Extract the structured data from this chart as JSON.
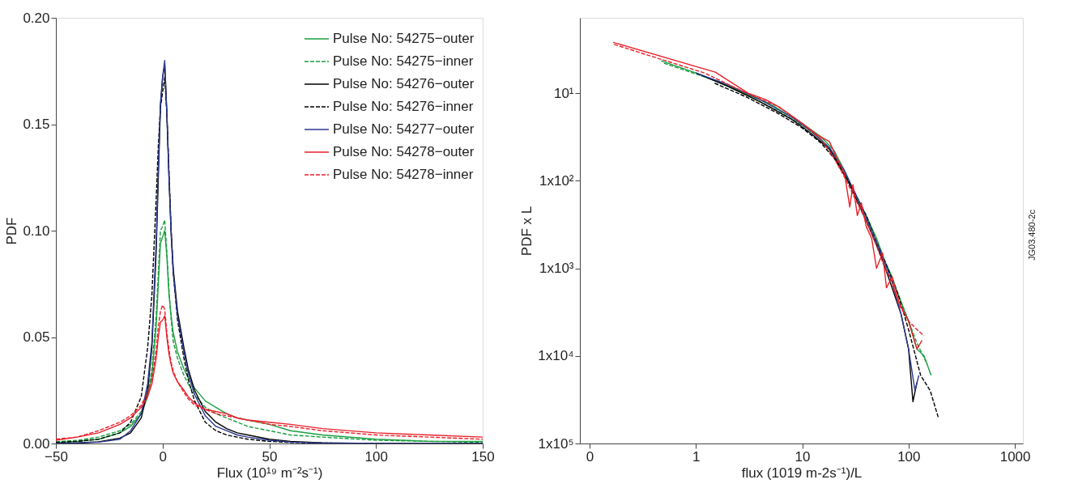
{
  "chart_data": [
    {
      "type": "line",
      "xlabel": "Flux (10¹⁹ m⁻²s⁻¹)",
      "ylabel": "PDF",
      "xlim": [
        -50,
        150
      ],
      "ylim": [
        0,
        0.2
      ],
      "xticks": [
        -50,
        0,
        50,
        100,
        150
      ],
      "yticks": [
        {
          "value": 0,
          "label": "0.00"
        },
        {
          "value": 0.05,
          "label": "0.05"
        },
        {
          "value": 0.1,
          "label": "0.10"
        },
        {
          "value": 0.15,
          "label": "0.15"
        },
        {
          "value": 0.2,
          "label": "0.20"
        }
      ],
      "grid": false,
      "legend": "top right",
      "x": [
        -50,
        -40,
        -30,
        -20,
        -15,
        -10,
        -7,
        -5,
        -3,
        -2,
        -1,
        0,
        1,
        2,
        3,
        4,
        5,
        7,
        10,
        12,
        15,
        20,
        25,
        30,
        35,
        40,
        50,
        60,
        75,
        100,
        125,
        150
      ],
      "series": [
        {
          "name": "Pulse No: 54275−outer",
          "color": "#1a9e3f",
          "line_style": "solid",
          "values": [
            0.0005,
            0.001,
            0.002,
            0.005,
            0.008,
            0.014,
            0.022,
            0.032,
            0.055,
            0.075,
            0.094,
            0.097,
            0.1,
            0.088,
            0.07,
            0.06,
            0.052,
            0.043,
            0.035,
            0.031,
            0.026,
            0.02,
            0.017,
            0.014,
            0.012,
            0.011,
            0.009,
            0.006,
            0.004,
            0.002,
            0.001,
            0.001
          ]
        },
        {
          "name": "Pulse No: 54275−inner",
          "color": "#1a9e3f",
          "line_style": "dashed",
          "values": [
            0.0008,
            0.0015,
            0.003,
            0.006,
            0.009,
            0.015,
            0.024,
            0.035,
            0.06,
            0.08,
            0.1,
            0.102,
            0.105,
            0.09,
            0.072,
            0.058,
            0.048,
            0.04,
            0.032,
            0.028,
            0.023,
            0.017,
            0.014,
            0.012,
            0.01,
            0.008,
            0.006,
            0.004,
            0.003,
            0.0015,
            0.001,
            0.0005
          ]
        },
        {
          "name": "Pulse No: 54276−outer",
          "color": "#000000",
          "line_style": "solid",
          "values": [
            0,
            0.0003,
            0.0008,
            0.0025,
            0.005,
            0.012,
            0.025,
            0.045,
            0.09,
            0.125,
            0.158,
            0.172,
            0.178,
            0.155,
            0.125,
            0.1,
            0.082,
            0.062,
            0.045,
            0.035,
            0.025,
            0.015,
            0.01,
            0.007,
            0.005,
            0.004,
            0.002,
            0.001,
            0.0003,
            0,
            0,
            0
          ]
        },
        {
          "name": "Pulse No: 54276−inner",
          "color": "#000000",
          "line_style": "dashed",
          "values": [
            0.0005,
            0.001,
            0.002,
            0.005,
            0.01,
            0.022,
            0.045,
            0.07,
            0.115,
            0.14,
            0.158,
            0.165,
            0.172,
            0.155,
            0.128,
            0.1,
            0.08,
            0.058,
            0.04,
            0.03,
            0.02,
            0.01,
            0.006,
            0.004,
            0.003,
            0.002,
            0.001,
            0.0005,
            0.0002,
            0,
            0,
            0
          ]
        },
        {
          "name": "Pulse No: 54277−outer",
          "color": "#2b3990",
          "line_style": "solid",
          "values": [
            0,
            0.0002,
            0.0006,
            0.002,
            0.006,
            0.014,
            0.028,
            0.048,
            0.095,
            0.13,
            0.16,
            0.172,
            0.18,
            0.155,
            0.125,
            0.098,
            0.08,
            0.06,
            0.043,
            0.033,
            0.023,
            0.013,
            0.008,
            0.006,
            0.004,
            0.003,
            0.0015,
            0.0006,
            0.0002,
            0,
            0,
            0
          ]
        },
        {
          "name": "Pulse No: 54278−outer",
          "color": "#e8202a",
          "line_style": "solid",
          "values": [
            0.0015,
            0.003,
            0.005,
            0.009,
            0.012,
            0.017,
            0.022,
            0.028,
            0.04,
            0.05,
            0.057,
            0.058,
            0.06,
            0.05,
            0.042,
            0.037,
            0.033,
            0.029,
            0.025,
            0.022,
            0.019,
            0.016,
            0.015,
            0.014,
            0.012,
            0.011,
            0.01,
            0.009,
            0.007,
            0.005,
            0.004,
            0.003
          ]
        },
        {
          "name": "Pulse No: 54278−inner",
          "color": "#e8202a",
          "line_style": "dashed",
          "values": [
            0.002,
            0.003,
            0.006,
            0.01,
            0.013,
            0.018,
            0.024,
            0.03,
            0.044,
            0.055,
            0.062,
            0.065,
            0.063,
            0.052,
            0.044,
            0.038,
            0.034,
            0.029,
            0.024,
            0.021,
            0.018,
            0.016,
            0.014,
            0.013,
            0.012,
            0.011,
            0.009,
            0.008,
            0.006,
            0.004,
            0.003,
            0.002
          ]
        }
      ]
    },
    {
      "type": "line",
      "xlabel": "flux (1019 m-2s⁻¹)/L",
      "ylabel": "PDF x L",
      "log": "xy",
      "xlim": [
        0.081,
        1190
      ],
      "ylim": [
        100000,
        1.38
      ],
      "xticks": [
        {
          "value": 0.1,
          "label": "0"
        },
        1,
        10,
        100,
        1000
      ],
      "yticks": [
        {
          "value": 10,
          "label": "10¹"
        },
        {
          "value": 100,
          "label": "1x10²"
        },
        {
          "value": 1000,
          "label": "1x10³"
        },
        {
          "value": 10000,
          "label": "1x10⁴"
        },
        {
          "value": 100000,
          "label": "1x10⁵"
        }
      ],
      "grid": false,
      "annotations": [
        "JG03.480-2c"
      ],
      "series": [
        {
          "color": "#1a9e3f",
          "line_style": "solid",
          "x": [
            0.47,
            1,
            2,
            5,
            10,
            15,
            20,
            25,
            30,
            40,
            50,
            60,
            70,
            80,
            100,
            120,
            140,
            163
          ],
          "values": [
            4.27,
            5.88,
            8.33,
            13.3,
            22.2,
            31.3,
            45.5,
            76.9,
            125,
            250,
            455,
            833,
            1250,
            2000,
            4000,
            8333,
            10000,
            16667
          ]
        },
        {
          "color": "#1a9e3f",
          "line_style": "dashed",
          "x": [
            0.5,
            1.5,
            3,
            6,
            10,
            15,
            20,
            30,
            40,
            50,
            60,
            80,
            100,
            120,
            150
          ],
          "values": [
            4.55,
            7.14,
            10.5,
            16.1,
            23.3,
            33.3,
            50,
            125,
            250,
            500,
            833,
            2000,
            4000,
            7143,
            12500
          ]
        },
        {
          "color": "#000000",
          "line_style": "solid",
          "x": [
            1,
            2,
            4,
            8,
            12,
            18,
            25,
            35,
            45,
            55,
            70,
            85,
            100,
            110,
            120
          ],
          "values": [
            5.88,
            8.33,
            12.5,
            20,
            28.6,
            43.5,
            83.3,
            200,
            400,
            714,
            1667,
            3333,
            8333,
            33333,
            20000
          ]
        },
        {
          "color": "#000000",
          "line_style": "dashed",
          "x": [
            1.5,
            3,
            6,
            10,
            15,
            20,
            30,
            40,
            50,
            60,
            80,
            100,
            130,
            160,
            190
          ],
          "values": [
            7.69,
            11.1,
            17.2,
            25,
            37,
            55.6,
            125,
            250,
            500,
            833,
            2000,
            5000,
            16667,
            25000,
            50000
          ]
        },
        {
          "color": "#2b3990",
          "line_style": "solid",
          "x": [
            1,
            2,
            4,
            8,
            12,
            18,
            25,
            35,
            45,
            55,
            70,
            85,
            100,
            115,
            125
          ],
          "values": [
            5.88,
            8,
            11.8,
            18.9,
            27,
            41.7,
            76.9,
            182,
            370,
            667,
            1429,
            3333,
            8333,
            25000,
            16667
          ]
        },
        {
          "color": "#e8202a",
          "line_style": "solid",
          "x": [
            0.166,
            1.52,
            3.1,
            4.5,
            6,
            9.8,
            14,
            18,
            21,
            25,
            28,
            30,
            33,
            36,
            40,
            45,
            50,
            57,
            62,
            70,
            82,
            100,
            120,
            134
          ],
          "values": [
            2.63,
            5.75,
            10,
            11.8,
            14.3,
            21.7,
            30.3,
            35.7,
            53.8,
            83.3,
            200,
            111,
            250,
            179,
            333,
            455,
            1000,
            667,
            1667,
            1250,
            2500,
            4000,
            8333,
            6667
          ]
        },
        {
          "color": "#e8202a",
          "line_style": "dashed",
          "x": [
            0.17,
            1.2,
            3,
            6,
            10,
            15,
            20,
            25,
            30,
            40,
            50,
            60,
            70,
            80,
            100,
            120,
            140
          ],
          "values": [
            2.78,
            5.88,
            10,
            14.3,
            22.2,
            33.3,
            55.6,
            90.9,
            143,
            286,
            556,
            1000,
            1429,
            2500,
            4000,
            5000,
            5882
          ]
        }
      ]
    }
  ]
}
